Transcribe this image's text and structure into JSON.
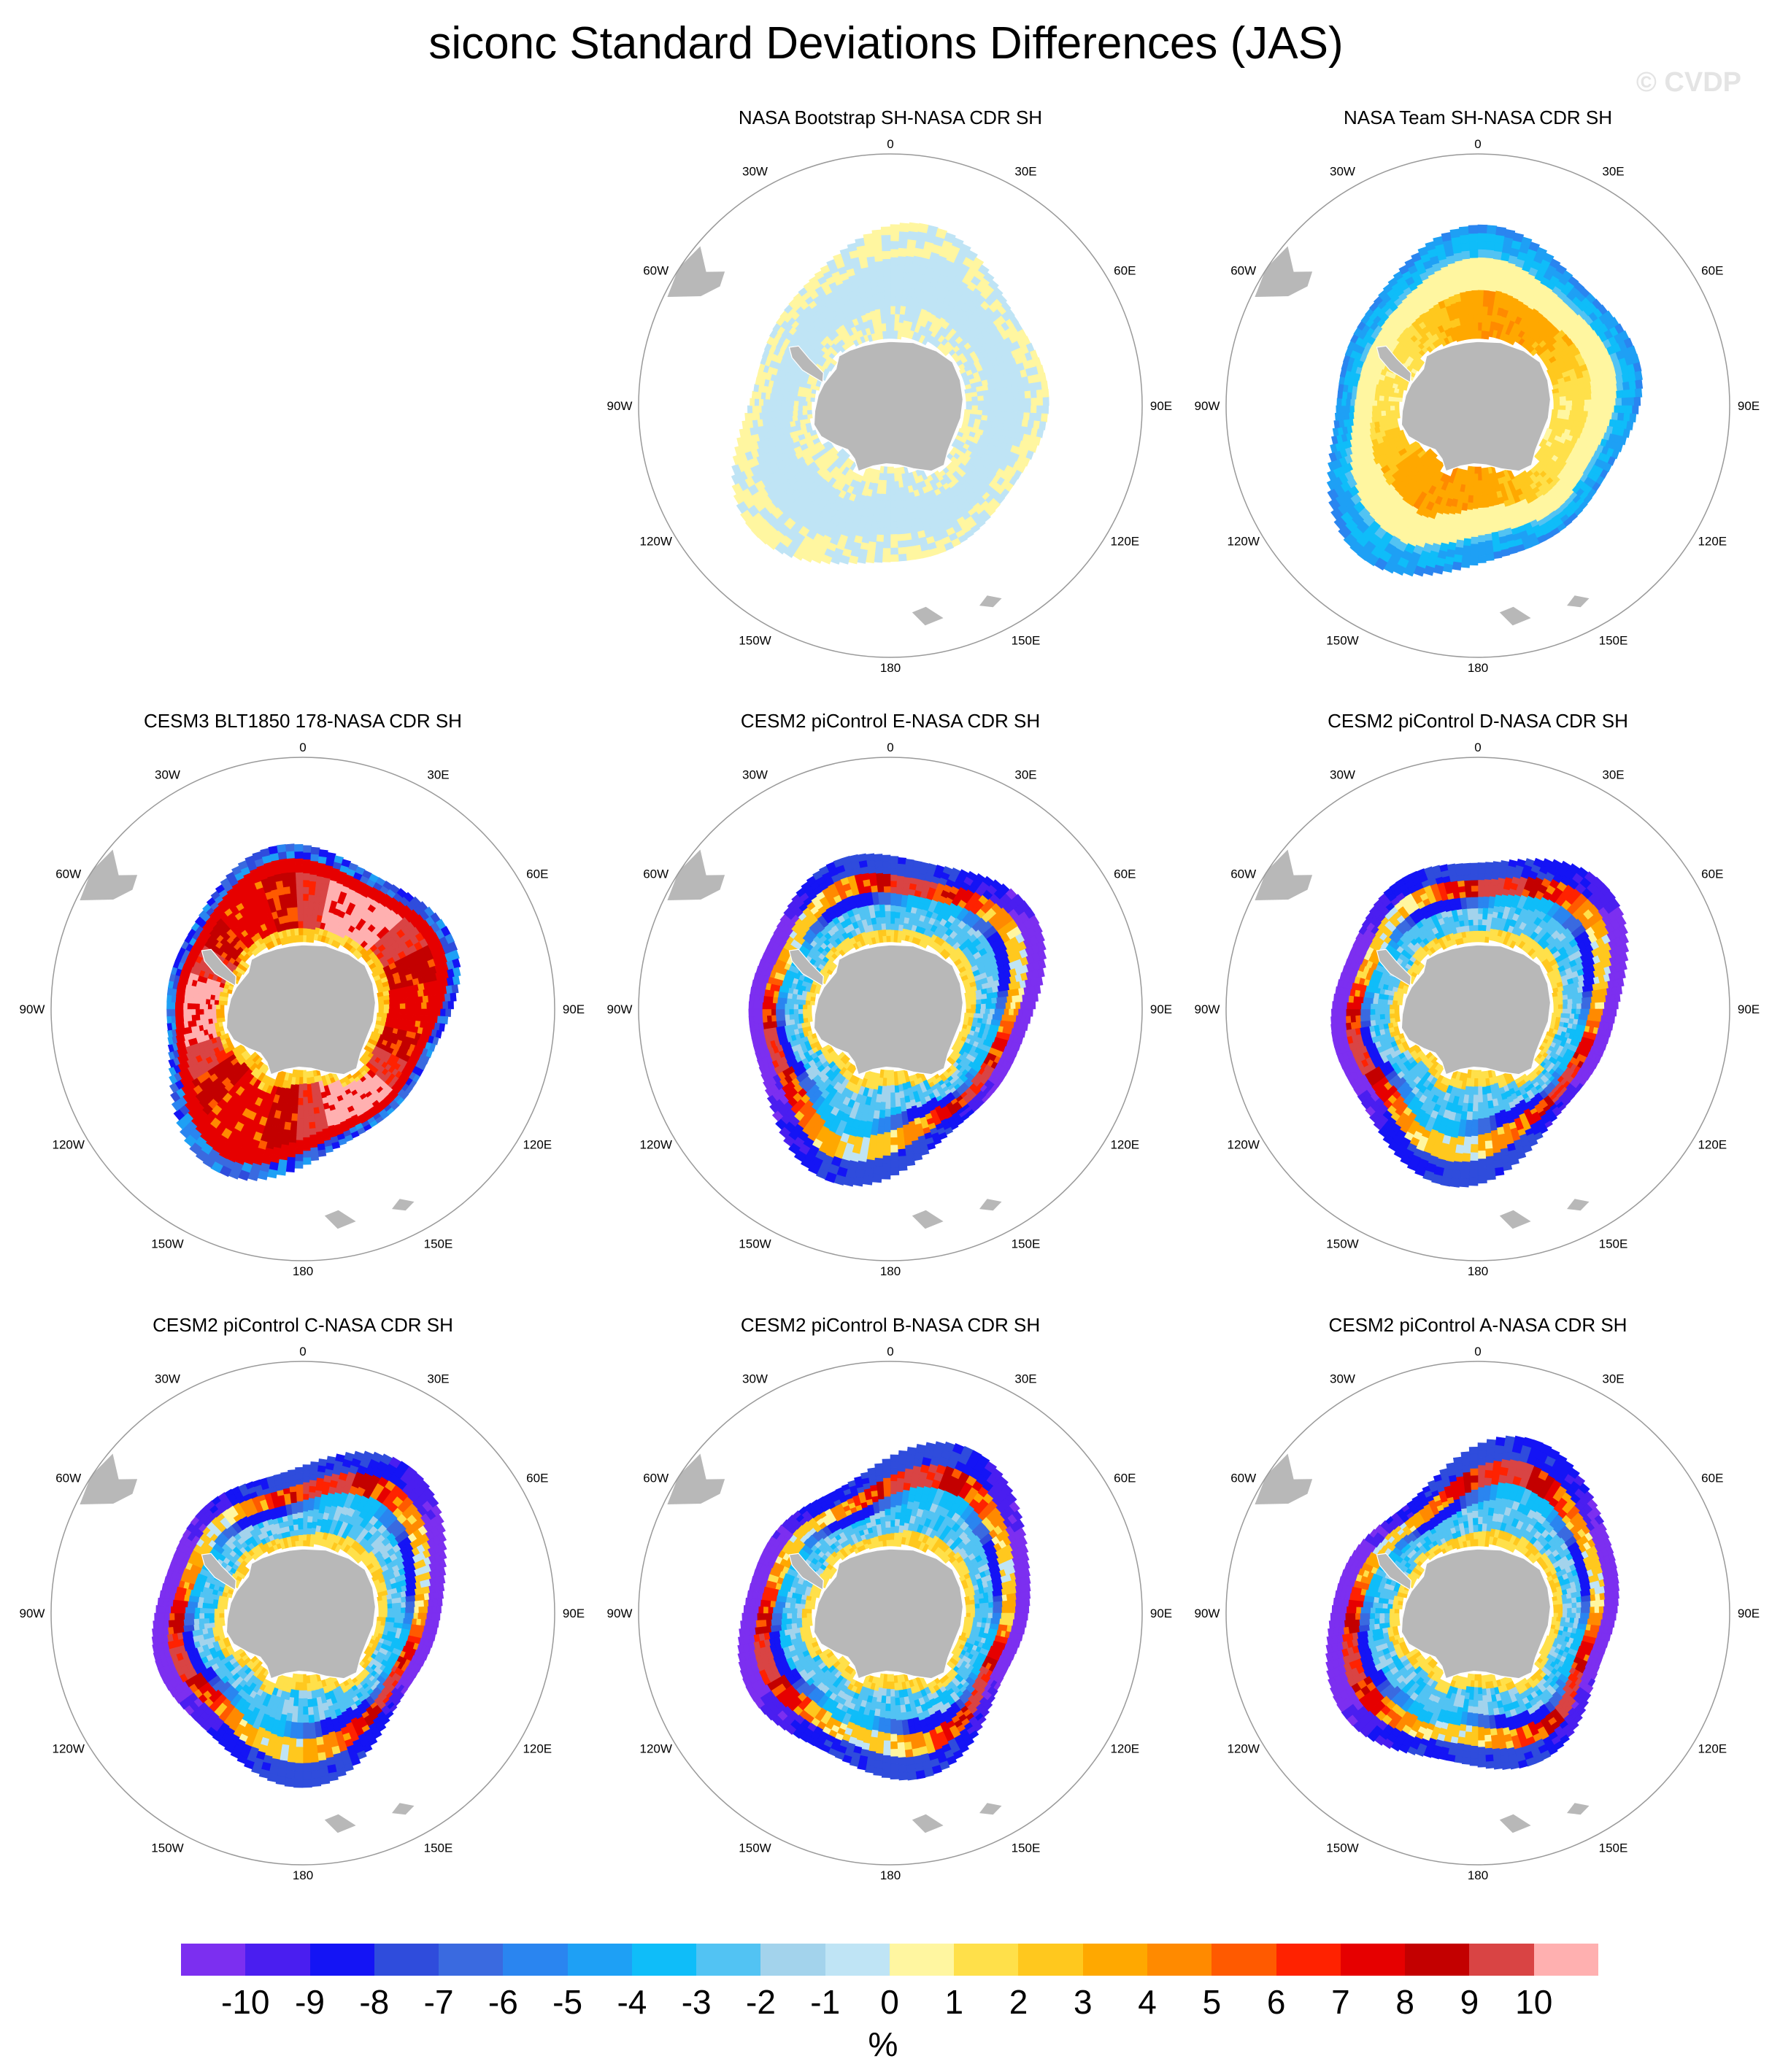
{
  "title": "siconc Standard Deviations Differences (JAS)",
  "watermark": "© CVDP",
  "colors": {
    "land": "#b8b8b8",
    "boundary": "#999999",
    "palette": [
      "#7c2ff0",
      "#4a1ef0",
      "#1414f5",
      "#2f4cdc",
      "#3a6ae0",
      "#2a85f0",
      "#1ea0f5",
      "#0fbdf9",
      "#52c3f3",
      "#a3d3ec",
      "#bfe4f5",
      "#fff6a0",
      "#ffe04a",
      "#ffc81e",
      "#ffa800",
      "#ff8a00",
      "#ff5a00",
      "#ff2200",
      "#e60000",
      "#c30000",
      "#d94444",
      "#ffb0b0"
    ]
  },
  "panel_titles": [
    "NASA Bootstrap SH-NASA CDR SH",
    "NASA Team SH-NASA CDR SH",
    "CESM3 BLT1850 178-NASA CDR SH",
    "CESM2 piControl E-NASA CDR SH",
    "CESM2 piControl D-NASA CDR SH",
    "CESM2 piControl C-NASA CDR SH",
    "CESM2 piControl B-NASA CDR SH",
    "CESM2 piControl A-NASA CDR SH"
  ],
  "lon_labels": [
    "0",
    "30E",
    "60E",
    "90E",
    "120E",
    "150E",
    "180",
    "150W",
    "120W",
    "90W",
    "60W",
    "30W"
  ],
  "colorbar": {
    "labels": [
      "-10",
      "-9",
      "-8",
      "-7",
      "-6",
      "-5",
      "-4",
      "-3",
      "-2",
      "-1",
      "0",
      "1",
      "2",
      "3",
      "4",
      "5",
      "6",
      "7",
      "8",
      "9",
      "10"
    ],
    "unit": "%"
  },
  "chart_data": {
    "type": "heatmap",
    "projection": "south polar stereographic",
    "variable": "siconc",
    "season": "JAS",
    "levels": [
      -10,
      -9,
      -8,
      -7,
      -6,
      -5,
      -4,
      -3,
      -2,
      -1,
      0,
      1,
      2,
      3,
      4,
      5,
      6,
      7,
      8,
      9,
      10
    ],
    "panels": [
      {
        "title": "NASA Bootstrap SH-NASA CDR SH",
        "pattern": "bootstrap",
        "summary": "weak differences, mostly -1 to 1"
      },
      {
        "title": "NASA Team SH-NASA CDR SH",
        "pattern": "team",
        "summary": "positive (2 to 4) near coast, negative (-2 to -5) at ice edge"
      },
      {
        "title": "CESM3 BLT1850 178-NASA CDR SH",
        "pattern": "cesm3",
        "summary": "large positive (6 to 10) ring, negative (-5 to -10) at outer edge"
      },
      {
        "title": "CESM2 piControl E-NASA CDR SH",
        "pattern": "cesm2",
        "summary": "negative (-8 to -10) outer ring, positive (5 to 10) inner ring"
      },
      {
        "title": "CESM2 piControl D-NASA CDR SH",
        "pattern": "cesm2",
        "summary": "negative (-8 to -10) outer ring, positive (5 to 10) inner ring"
      },
      {
        "title": "CESM2 piControl C-NASA CDR SH",
        "pattern": "cesm2",
        "summary": "negative (-8 to -10) outer ring, positive (5 to 10) inner ring"
      },
      {
        "title": "CESM2 piControl B-NASA CDR SH",
        "pattern": "cesm2",
        "summary": "negative (-8 to -10) outer ring, positive (5 to 10) inner ring"
      },
      {
        "title": "CESM2 piControl A-NASA CDR SH",
        "pattern": "cesm2",
        "summary": "negative (-8 to -10) outer ring, positive (5 to 10) inner ring"
      }
    ]
  }
}
